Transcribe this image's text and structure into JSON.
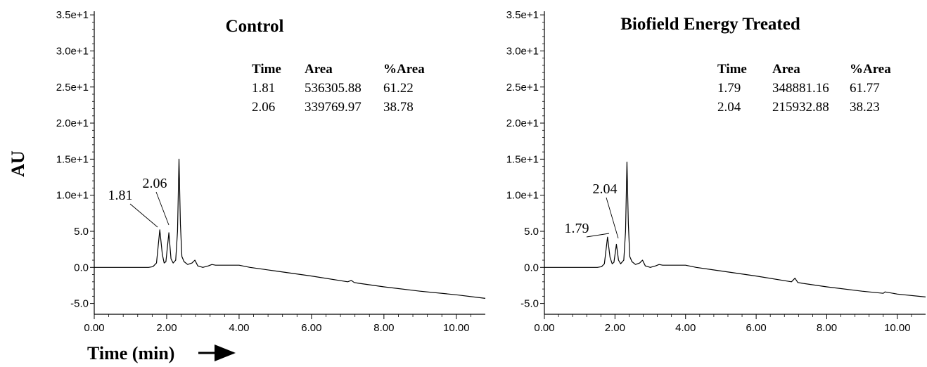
{
  "figure": {
    "ylabel": "AU",
    "xlabel": "Time (min)"
  },
  "chart_data": [
    {
      "type": "line",
      "title": "Control",
      "xlabel": "Time (min)",
      "ylabel": "AU",
      "xlim": [
        0,
        10.8
      ],
      "ylim": [
        -6.5,
        35.5
      ],
      "x_ticks": [
        "0.00",
        "2.00",
        "4.00",
        "6.00",
        "8.00",
        "10.00"
      ],
      "y_ticks": [
        "-5.0",
        "0.0",
        "5.0",
        "1.0e+1",
        "1.5e+1",
        "2.0e+1",
        "2.5e+1",
        "3.0e+1",
        "3.5e+1"
      ],
      "grid": false,
      "series": [
        {
          "x": [
            0,
            1.0,
            1.5,
            1.62,
            1.72,
            1.81,
            1.88,
            1.93,
            1.98,
            2.06,
            2.12,
            2.18,
            2.25,
            2.3,
            2.34,
            2.38,
            2.42,
            2.48,
            2.58,
            2.7,
            2.78,
            2.86,
            3.0,
            3.15,
            3.25,
            3.35,
            3.6,
            4.0,
            4.3,
            5.0,
            6.0,
            7.0,
            7.1,
            7.18,
            7.3,
            8.0,
            9.0,
            10.0,
            10.8
          ],
          "y": [
            0.0,
            0.0,
            0.0,
            0.1,
            0.6,
            5.2,
            1.8,
            0.6,
            0.8,
            4.8,
            1.2,
            0.6,
            1.0,
            5.0,
            15.0,
            6.0,
            1.5,
            0.8,
            0.4,
            0.6,
            1.0,
            0.2,
            0.0,
            0.2,
            0.4,
            0.3,
            0.3,
            0.3,
            0.0,
            -0.5,
            -1.2,
            -2.0,
            -1.8,
            -2.1,
            -2.2,
            -2.7,
            -3.3,
            -3.8,
            -4.3
          ]
        }
      ],
      "peak_labels": [
        "1.81",
        "2.06"
      ],
      "table": {
        "headers": [
          "Time",
          "Area",
          "%Area"
        ],
        "rows": [
          [
            "1.81",
            "536305.88",
            "61.22"
          ],
          [
            "2.06",
            "339769.97",
            "38.78"
          ]
        ]
      }
    },
    {
      "type": "line",
      "title": "Biofield Energy Treated",
      "xlabel": "",
      "ylabel": "AU",
      "xlim": [
        0,
        10.8
      ],
      "ylim": [
        -6.5,
        35.5
      ],
      "x_ticks": [
        "0.00",
        "2.00",
        "4.00",
        "6.00",
        "8.00",
        "10.00"
      ],
      "y_ticks": [
        "-5.0",
        "0.0",
        "5.0",
        "1.0e+1",
        "1.5e+1",
        "2.0e+1",
        "2.5e+1",
        "3.0e+1",
        "3.5e+1"
      ],
      "grid": false,
      "series": [
        {
          "x": [
            0,
            1.0,
            1.5,
            1.62,
            1.7,
            1.79,
            1.86,
            1.92,
            1.97,
            2.04,
            2.1,
            2.16,
            2.25,
            2.3,
            2.34,
            2.38,
            2.42,
            2.48,
            2.58,
            2.7,
            2.78,
            2.86,
            3.0,
            3.15,
            3.25,
            3.35,
            3.6,
            4.0,
            4.3,
            5.0,
            6.0,
            7.0,
            7.1,
            7.18,
            7.3,
            8.0,
            9.0,
            9.6,
            9.65,
            10.0,
            10.8
          ],
          "y": [
            0.0,
            0.0,
            0.0,
            0.1,
            0.5,
            4.2,
            1.4,
            0.5,
            0.7,
            3.2,
            1.0,
            0.5,
            1.0,
            5.0,
            14.6,
            6.0,
            1.5,
            0.8,
            0.4,
            0.6,
            1.0,
            0.2,
            0.0,
            0.2,
            0.4,
            0.3,
            0.3,
            0.3,
            0.0,
            -0.5,
            -1.2,
            -2.0,
            -1.5,
            -2.1,
            -2.2,
            -2.7,
            -3.3,
            -3.6,
            -3.4,
            -3.7,
            -4.1
          ]
        }
      ],
      "peak_labels": [
        "1.79",
        "2.04"
      ],
      "table": {
        "headers": [
          "Time",
          "Area",
          "%Area"
        ],
        "rows": [
          [
            "1.79",
            "348881.16",
            "61.77"
          ],
          [
            "2.04",
            "215932.88",
            "38.23"
          ]
        ]
      }
    }
  ]
}
